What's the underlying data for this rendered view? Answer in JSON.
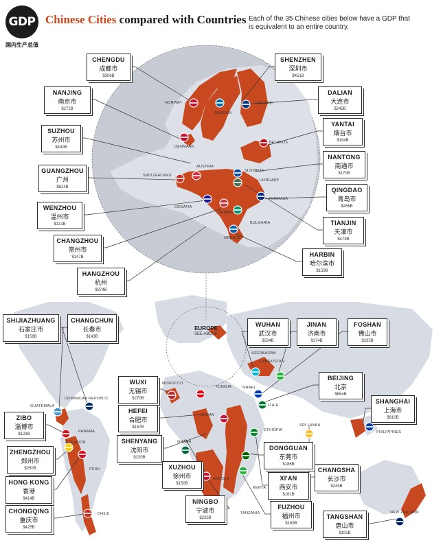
{
  "header": {
    "logo": "GDP",
    "logo_sub": "国内生产总值",
    "title_accent": "Chinese Cities",
    "title_rest": " compared with Countries",
    "description": "Each of the 35 Chinese cities below have a GDP that is equivalent to an entire country."
  },
  "colors": {
    "highlight": "#c8481f",
    "land": "#d7dce4",
    "circle": "#c7ccd4",
    "ink": "#1c1c1c"
  },
  "europe_label": {
    "title": "EUROPE",
    "subtitle": "SEE ABOVE"
  },
  "cities": [
    {
      "en": "CHENGDU",
      "cn": "成都市",
      "gdp": "$306B"
    },
    {
      "en": "SHENZHEN",
      "cn": "深圳市",
      "gdp": "$451B"
    },
    {
      "en": "NANJING",
      "cn": "南京市",
      "gdp": "$272B"
    },
    {
      "en": "DALIAN",
      "cn": "大连市",
      "gdp": "$245B"
    },
    {
      "en": "SUZHOU",
      "cn": "苏州市",
      "gdp": "$440B"
    },
    {
      "en": "YANTAI",
      "cn": "烟台市",
      "gdp": "$184B"
    },
    {
      "en": "GUANGZHOU",
      "cn": "广州",
      "gdp": "$524B"
    },
    {
      "en": "NANTONG",
      "cn": "南通市",
      "gdp": "$170B"
    },
    {
      "en": "WENZHOU",
      "cn": "温州市",
      "gdp": "$131B"
    },
    {
      "en": "QINGDAO",
      "cn": "青岛市",
      "gdp": "$266B"
    },
    {
      "en": "CHANGZHOU",
      "cn": "常州市",
      "gdp": "$147B"
    },
    {
      "en": "TIANJIN",
      "cn": "天津市",
      "gdp": "$478B"
    },
    {
      "en": "HARBIN",
      "cn": "哈尔滨市",
      "gdp": "$159B"
    },
    {
      "en": "HANGZHOU",
      "cn": "杭州",
      "gdp": "$374B"
    },
    {
      "en": "SHIJIAZHUANG",
      "cn": "石家庄市",
      "gdp": "$156B"
    },
    {
      "en": "CHANGCHUN",
      "cn": "长春市",
      "gdp": "$143B"
    },
    {
      "en": "WUHAN",
      "cn": "武汉市",
      "gdp": "$334B"
    },
    {
      "en": "JINAN",
      "cn": "济南市",
      "gdp": "$174B"
    },
    {
      "en": "FOSHAN",
      "cn": "佛山市",
      "gdp": "$235B"
    },
    {
      "en": "WUXI",
      "cn": "无锡市",
      "gdp": "$270B"
    },
    {
      "en": "HEFEI",
      "cn": "合肥市",
      "gdp": "$157B"
    },
    {
      "en": "BEIJING",
      "cn": "北京",
      "gdp": "$664B"
    },
    {
      "en": "SHANGHAI",
      "cn": "上海市",
      "gdp": "$810B"
    },
    {
      "en": "SHENYANG",
      "cn": "沈阳市",
      "gdp": "$230B"
    },
    {
      "en": "ZIBO",
      "cn": "淄博市",
      "gdp": "$123B"
    },
    {
      "en": "ZHENGZHOU",
      "cn": "郑州市",
      "gdp": "$250B"
    },
    {
      "en": "HONG KONG",
      "cn": "香港",
      "gdp": "$414B"
    },
    {
      "en": "CHONGQING",
      "cn": "重庆市",
      "gdp": "$425B"
    },
    {
      "en": "XUZHOU",
      "cn": "徐州市",
      "gdp": "$150B"
    },
    {
      "en": "DONGGUAN",
      "cn": "东莞市",
      "gdp": "$186B"
    },
    {
      "en": "XI'AN",
      "cn": "西安市",
      "gdp": "$161B"
    },
    {
      "en": "FUZHOU",
      "cn": "福州市",
      "gdp": "$169B"
    },
    {
      "en": "CHANGSHA",
      "cn": "长沙市",
      "gdp": "$245B"
    },
    {
      "en": "NINGBO",
      "cn": "宁波市",
      "gdp": "$233B"
    },
    {
      "en": "TANGSHAN",
      "cn": "唐山市",
      "gdp": "$191B"
    }
  ],
  "countries": [
    "NORWAY",
    "SWEDEN",
    "FINLAND",
    "DENMARK",
    "BELARUS",
    "AUSTRIA",
    "SLOVAKIA",
    "SWITZERLAND",
    "HUNGARY",
    "ROMANIA",
    "CROATIA",
    "SERBIA",
    "BULGARIA",
    "GREECE",
    "AZERBAIJAN",
    "UZBEKISTAN",
    "MOROCCO",
    "TUNISIA",
    "ISRAEL",
    "U.A.E.",
    "DOMINICAN REPUBLIC",
    "GUATEMALA",
    "SUDAN",
    "SRI LANKA",
    "ETHIOPIA",
    "PHILIPPINES",
    "PANAMA",
    "ECUADOR",
    "GHANA",
    "PERU",
    "ANGOLA",
    "KENYA",
    "TANZANIA",
    "CHILE",
    "NEW ZEALAND"
  ]
}
